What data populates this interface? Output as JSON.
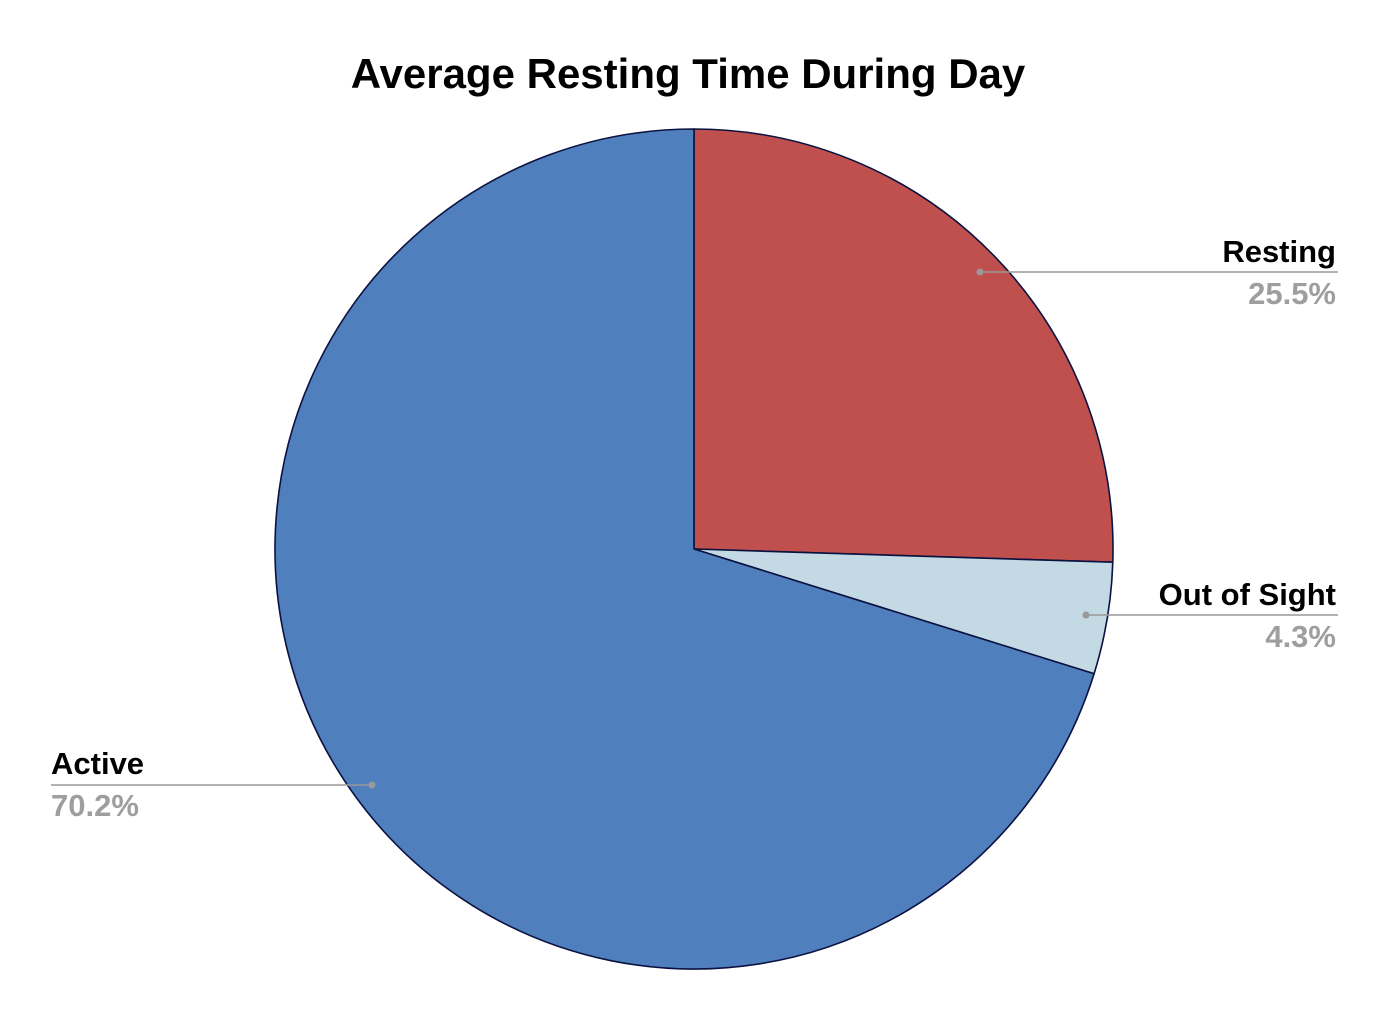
{
  "chart_data": {
    "type": "pie",
    "title": "Average Resting Time During Day",
    "slices": [
      {
        "label": "Resting",
        "value": 25.5,
        "value_label": "25.5%",
        "color": "#c0504d"
      },
      {
        "label": "Out of Sight",
        "value": 4.3,
        "value_label": "4.3%",
        "color": "#c3d9e3"
      },
      {
        "label": "Active",
        "value": 70.2,
        "value_label": "70.2%",
        "color": "#4f7fbd"
      }
    ],
    "slice_border_color": "#0b1240",
    "leader_line_color": "#999999",
    "legend": "none"
  }
}
